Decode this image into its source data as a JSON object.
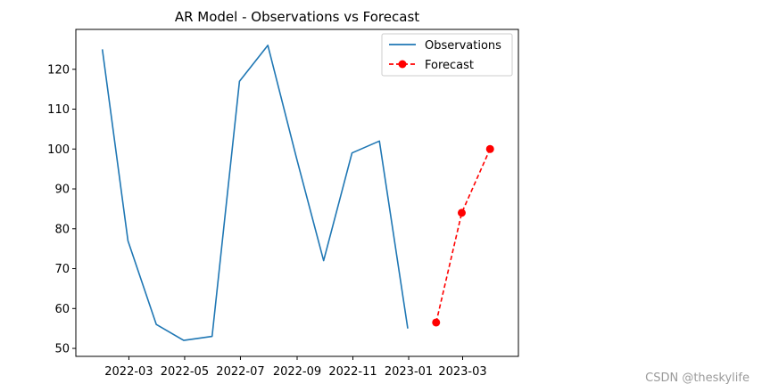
{
  "chart_data": {
    "type": "line",
    "title": "AR Model - Observations vs Forecast",
    "xlabel": "",
    "ylabel": "",
    "ylim": [
      48,
      130
    ],
    "xlim": [
      "2022-01-02",
      "2023-05-01"
    ],
    "y_ticks": [
      50,
      60,
      70,
      80,
      90,
      100,
      110,
      120
    ],
    "x_ticks": [
      {
        "date": "2022-03-01",
        "label": "2022-03"
      },
      {
        "date": "2022-05-01",
        "label": "2022-05"
      },
      {
        "date": "2022-07-01",
        "label": "2022-07"
      },
      {
        "date": "2022-09-01",
        "label": "2022-09"
      },
      {
        "date": "2022-11-01",
        "label": "2022-11"
      },
      {
        "date": "2023-01-01",
        "label": "2023-01"
      },
      {
        "date": "2023-03-01",
        "label": "2023-03"
      }
    ],
    "legend_position": "top-right",
    "series": [
      {
        "name": "Observations",
        "style": "solid",
        "color": "#1f77b4",
        "marker": "none",
        "x": [
          "2022-01-31",
          "2022-02-28",
          "2022-03-31",
          "2022-04-30",
          "2022-05-31",
          "2022-06-30",
          "2022-07-31",
          "2022-08-31",
          "2022-09-30",
          "2022-10-31",
          "2022-11-30",
          "2022-12-31"
        ],
        "values": [
          125,
          77,
          56,
          52,
          53,
          117,
          126,
          98,
          72,
          99,
          102,
          55
        ]
      },
      {
        "name": "Forecast",
        "style": "dashed",
        "color": "#ff0000",
        "marker": "circle",
        "x": [
          "2023-01-31",
          "2023-02-28",
          "2023-03-31"
        ],
        "values": [
          56.5,
          84,
          100
        ]
      }
    ]
  },
  "watermark": "CSDN @theskylife"
}
